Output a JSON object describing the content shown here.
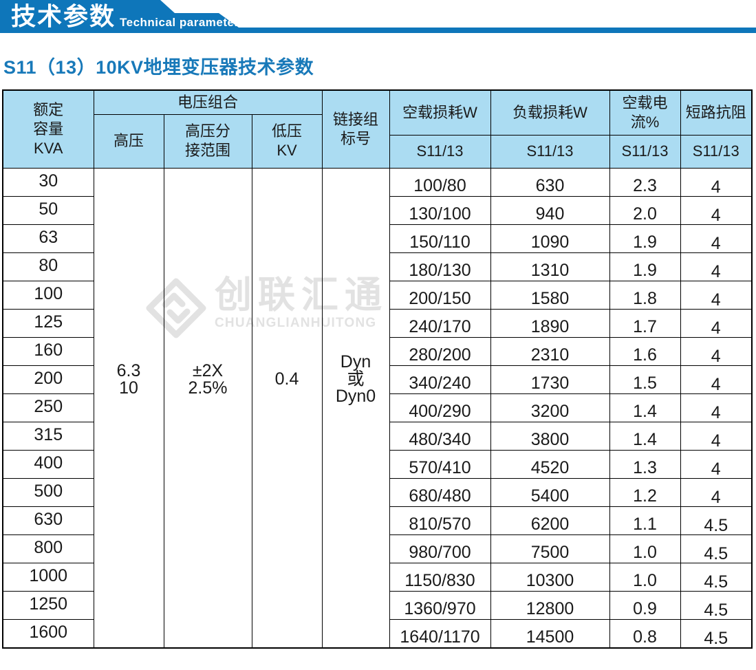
{
  "banner": {
    "title_cn": "技术参数",
    "title_en": "Technical parameter",
    "ribbon_color": "#0e76ba"
  },
  "section_title": "S11（13）10KV地埋变压器技术参数",
  "section_title_color": "#1879b9",
  "watermark": {
    "logo": "interlocking-diamond-logo",
    "cn": "创联汇通",
    "en": "CHUANGLIANHUITONG",
    "color": "#e2e2e2"
  },
  "table": {
    "header_bg": "#abdcf2",
    "header": {
      "capacity": "额定\n容量\nKVA",
      "voltage_group": "电压组合",
      "hv": "高压",
      "hv_tap": "高压分\n接范围",
      "lv": "低压\nKV",
      "connection": "链接组\n标号",
      "noload_loss": "空载损耗W",
      "load_loss": "负载损耗W",
      "noload_current": "空载电流%",
      "impedance": "短路抗阻",
      "sub": "S11/13"
    },
    "merged": {
      "hv": "6.3\n10",
      "hv_tap": "±2X\n2.5%",
      "lv": "0.4",
      "connection": "Dyn\n或\nDyn0"
    },
    "rows": [
      {
        "kva": "30",
        "noload": "100/80",
        "load": "630",
        "current": "2.3",
        "impedance": "4"
      },
      {
        "kva": "50",
        "noload": "130/100",
        "load": "940",
        "current": "2.0",
        "impedance": "4"
      },
      {
        "kva": "63",
        "noload": "150/110",
        "load": "1090",
        "current": "1.9",
        "impedance": "4"
      },
      {
        "kva": "80",
        "noload": "180/130",
        "load": "1310",
        "current": "1.9",
        "impedance": "4"
      },
      {
        "kva": "100",
        "noload": "200/150",
        "load": "1580",
        "current": "1.8",
        "impedance": "4"
      },
      {
        "kva": "125",
        "noload": "240/170",
        "load": "1890",
        "current": "1.7",
        "impedance": "4"
      },
      {
        "kva": "160",
        "noload": "280/200",
        "load": "2310",
        "current": "1.6",
        "impedance": "4"
      },
      {
        "kva": "200",
        "noload": "340/240",
        "load": "1730",
        "current": "1.5",
        "impedance": "4"
      },
      {
        "kva": "250",
        "noload": "400/290",
        "load": "3200",
        "current": "1.4",
        "impedance": "4"
      },
      {
        "kva": "315",
        "noload": "480/340",
        "load": "3800",
        "current": "1.4",
        "impedance": "4"
      },
      {
        "kva": "400",
        "noload": "570/410",
        "load": "4520",
        "current": "1.3",
        "impedance": "4"
      },
      {
        "kva": "500",
        "noload": "680/480",
        "load": "5400",
        "current": "1.2",
        "impedance": "4"
      },
      {
        "kva": "630",
        "noload": "810/570",
        "load": "6200",
        "current": "1.1",
        "impedance": "4.5"
      },
      {
        "kva": "800",
        "noload": "980/700",
        "load": "7500",
        "current": "1.0",
        "impedance": "4.5"
      },
      {
        "kva": "1000",
        "noload": "1150/830",
        "load": "10300",
        "current": "1.0",
        "impedance": "4.5"
      },
      {
        "kva": "1250",
        "noload": "1360/970",
        "load": "12800",
        "current": "0.9",
        "impedance": "4.5"
      },
      {
        "kva": "1600",
        "noload": "1640/1170",
        "load": "14500",
        "current": "0.8",
        "impedance": "4.5"
      }
    ]
  }
}
